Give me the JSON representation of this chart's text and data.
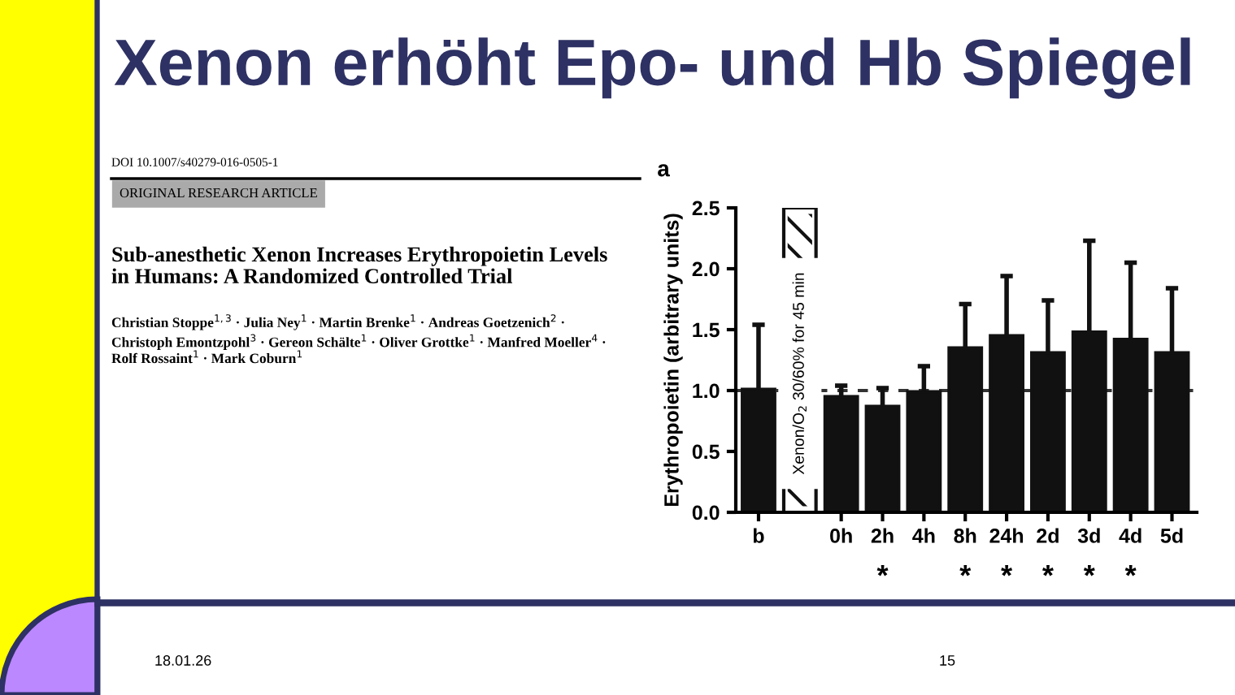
{
  "chart_data": {
    "type": "bar",
    "title": "Xenon erhöht Epo- und Hb Spiegel",
    "ylabel": "Erythropoietin (arbitrary units)",
    "categories": [
      "b",
      null,
      "0h",
      "2h",
      "4h",
      "8h",
      "24h",
      "2d",
      "3d",
      "4d",
      "5d"
    ],
    "values": [
      1.01,
      2.5,
      0.95,
      0.87,
      0.99,
      1.35,
      1.45,
      1.31,
      1.48,
      1.42,
      1.31
    ],
    "colors": [
      "#111111",
      "#ffffff",
      "#111111",
      "#111111",
      "#111111",
      "#111111",
      "#111111",
      "#111111",
      "#111111",
      "#111111",
      "#111111"
    ],
    "errors": [
      [
        1.01,
        1.54
      ],
      null,
      [
        0.95,
        1.04
      ],
      [
        0.87,
        1.02
      ],
      [
        0.99,
        1.2
      ],
      [
        1.35,
        1.71
      ],
      [
        1.45,
        1.94
      ],
      [
        1.31,
        1.74
      ],
      [
        1.48,
        2.23
      ],
      [
        1.42,
        2.05
      ],
      [
        1.31,
        1.84
      ]
    ],
    "ylim": [
      0,
      2.5
    ],
    "yticks": [
      {
        "value": 0,
        "label": "0.0"
      },
      0.5,
      {
        "value": 1,
        "label": "1.0"
      },
      1.5,
      {
        "value": 2,
        "label": "2.0"
      },
      2.5
    ],
    "ref_lines": [
      {
        "axis": "y",
        "value": 1,
        "line_style": "dashed",
        "color": "#333333"
      }
    ],
    "grid": false,
    "legend": false,
    "annotations": [
      "Xenon/O$_{2}$ 30/60% for 45 min",
      "a",
      "*",
      "*",
      "*",
      "*",
      "*",
      "*",
      "DOI 10.1007/s40279-016-0505-1",
      "ORIGINAL RESEARCH ARTICLE",
      "Sub-anesthetic Xenon Increases Erythropoietin Levels\nin Humans: A Randomized Controlled Trial",
      "Christian Stoppe$^{1,3}$ · Julia Ney$^{1}$ · Martin Brenke$^{1}$ · Andreas Goetzenich$^{2}$ ·\nChristoph Emontzpohl$^{3}$ · Gereon Schälte$^{1}$ · Oliver Grottke$^{1}$ · Manfred Moeller$^{4}$ ·\nRolf Rossaint$^{1}$ · Mark Coburn$^{1}$",
      "18.01.26",
      "15"
    ]
  }
}
